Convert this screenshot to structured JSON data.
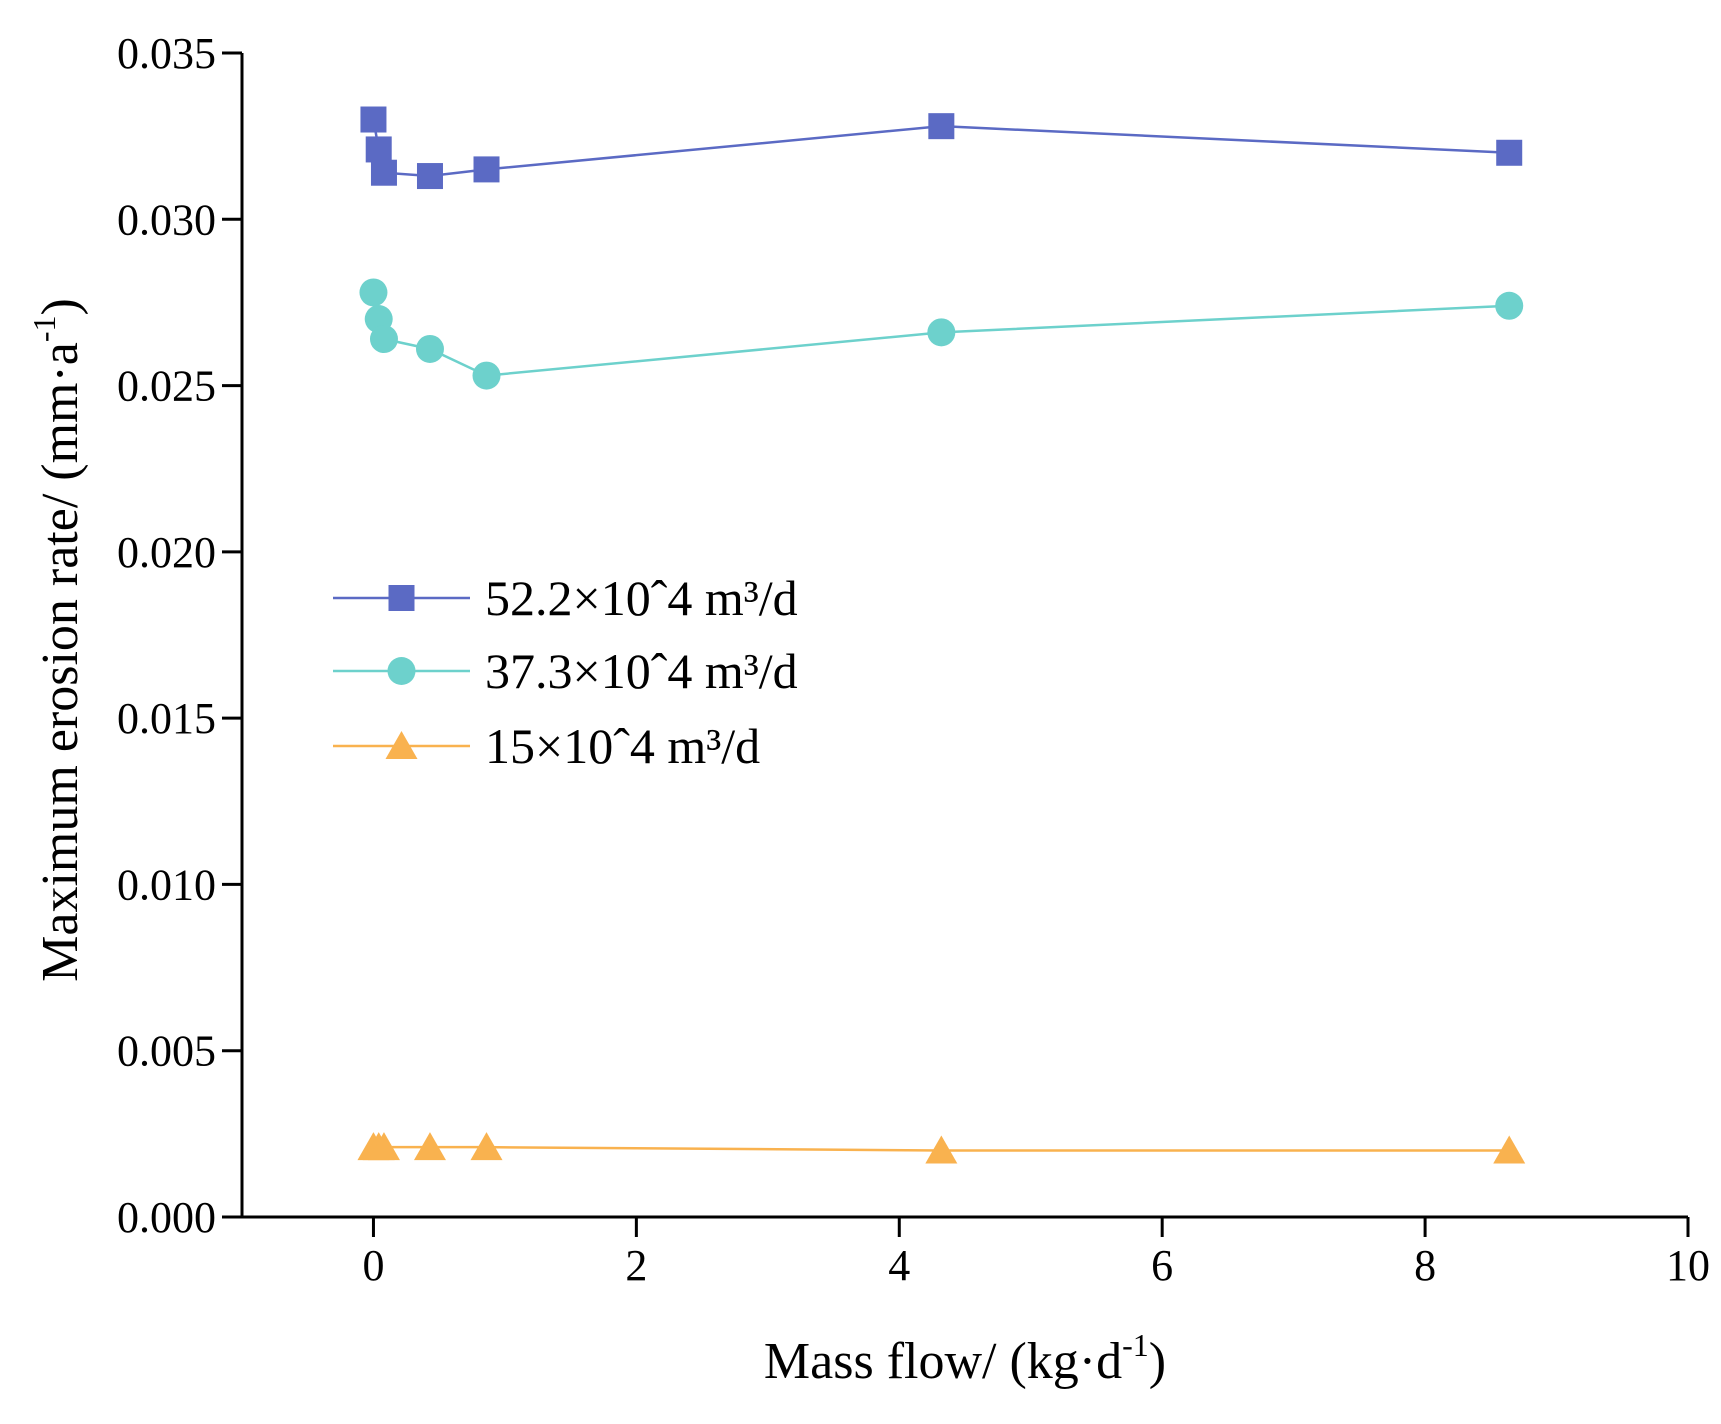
{
  "chart_data": {
    "type": "line",
    "xlabel": {
      "main": "Mass flow/ (kg·d",
      "sup": "-1",
      "close": ")"
    },
    "ylabel": {
      "main": "Maximum erosion rate/ (mm·a",
      "sup": "-1",
      "close": ")"
    },
    "xlim": [
      -1,
      10
    ],
    "ylim": [
      0,
      0.035
    ],
    "xticks": [
      {
        "value": 0,
        "label": "0"
      },
      {
        "value": 2,
        "label": "2"
      },
      {
        "value": 4,
        "label": "4"
      },
      {
        "value": 6,
        "label": "6"
      },
      {
        "value": 8,
        "label": "8"
      },
      {
        "value": 10,
        "label": "10"
      }
    ],
    "yticks": [
      {
        "value": 0.0,
        "label": "0.000"
      },
      {
        "value": 0.005,
        "label": "0.005"
      },
      {
        "value": 0.01,
        "label": "0.010"
      },
      {
        "value": 0.015,
        "label": "0.015"
      },
      {
        "value": 0.02,
        "label": "0.020"
      },
      {
        "value": 0.025,
        "label": "0.025"
      },
      {
        "value": 0.03,
        "label": "0.030"
      },
      {
        "value": 0.035,
        "label": "0.035"
      }
    ],
    "grid": false,
    "legend_position": "center-left",
    "series": [
      {
        "name": "52.2×10ˆ4 m³/d",
        "color": "#5b6ac4",
        "marker": "square",
        "x": [
          0.0,
          0.04,
          0.08,
          0.43,
          0.86,
          4.32,
          8.64
        ],
        "y": [
          0.033,
          0.0321,
          0.0314,
          0.0313,
          0.0315,
          0.0328,
          0.032
        ]
      },
      {
        "name": "37.3×10ˆ4 m³/d",
        "color": "#6dd1cc",
        "marker": "circle",
        "x": [
          0.0,
          0.04,
          0.08,
          0.43,
          0.86,
          4.32,
          8.64
        ],
        "y": [
          0.0278,
          0.027,
          0.0264,
          0.0261,
          0.0253,
          0.0266,
          0.0274
        ]
      },
      {
        "name": "15×10ˆ4 m³/d",
        "color": "#f9b24f",
        "marker": "triangle",
        "x": [
          0.0,
          0.04,
          0.08,
          0.43,
          0.86,
          4.32,
          8.64
        ],
        "y": [
          0.0021,
          0.0021,
          0.0021,
          0.0021,
          0.0021,
          0.002,
          0.002
        ]
      }
    ]
  }
}
